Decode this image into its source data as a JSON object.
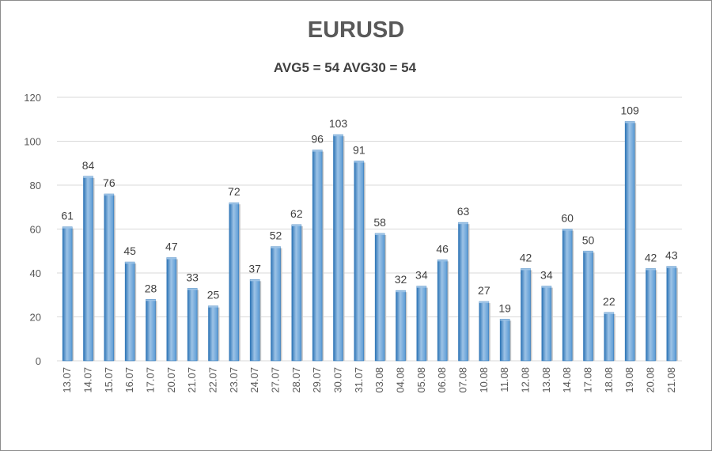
{
  "chart_data": {
    "type": "bar",
    "title": "EURUSD",
    "subtitle": "AVG5 = 54 AVG30 = 54",
    "categories": [
      "13.07",
      "14.07",
      "15.07",
      "16.07",
      "17.07",
      "20.07",
      "21.07",
      "22.07",
      "23.07",
      "24.07",
      "27.07",
      "28.07",
      "29.07",
      "30.07",
      "31.07",
      "03.08",
      "04.08",
      "05.08",
      "06.08",
      "07.08",
      "10.08",
      "11.08",
      "12.08",
      "13.08",
      "14.08",
      "17.08",
      "18.08",
      "19.08",
      "20.08",
      "21.08"
    ],
    "values": [
      61,
      84,
      76,
      45,
      28,
      47,
      33,
      25,
      72,
      37,
      52,
      62,
      96,
      103,
      91,
      58,
      32,
      34,
      46,
      63,
      27,
      19,
      42,
      34,
      60,
      50,
      22,
      109,
      42,
      43
    ],
    "ylim": [
      0,
      120
    ],
    "yticks": [
      0,
      20,
      40,
      60,
      80,
      100,
      120
    ],
    "grid": true,
    "data_labels": true,
    "colors": {
      "bar": "#5b9bd5",
      "bar_light": "#9dc3e6",
      "bar_dark": "#2e75b6",
      "grid": "#d9d9d9"
    }
  }
}
